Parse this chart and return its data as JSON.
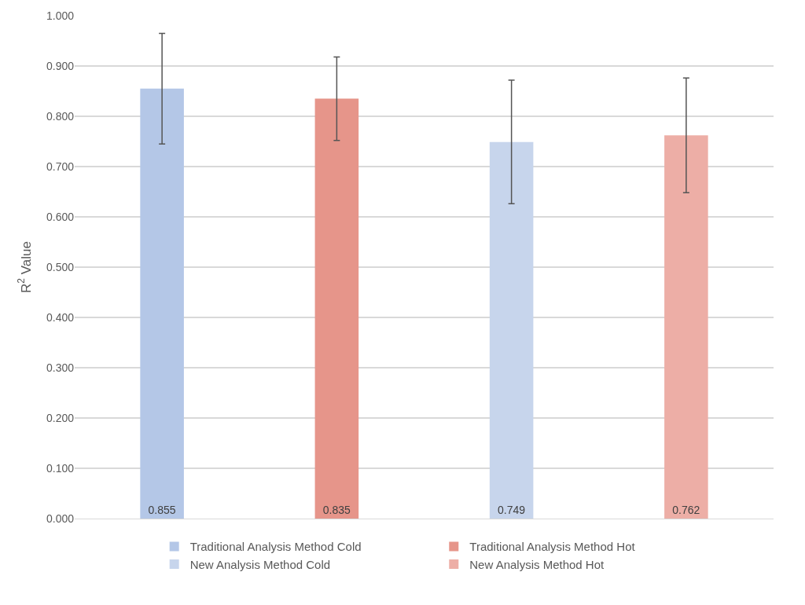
{
  "chart_data": {
    "type": "bar",
    "ylabel": "R$^{2}$ Value",
    "categories": [
      null,
      null,
      null,
      null
    ],
    "series": [
      {
        "name": "Traditional Analysis Method Cold",
        "color": "#b4c7e7",
        "values": [
          0.855,
          null,
          null,
          null
        ],
        "errors": [
          0.11,
          null,
          null,
          null
        ]
      },
      {
        "name": "Traditional Analysis Method Hot",
        "color": "#e6958a",
        "values": [
          null,
          0.835,
          null,
          null
        ],
        "errors": [
          null,
          0.083,
          null,
          null
        ]
      },
      {
        "name": "New Analysis Method Cold",
        "color": "#c7d5ec",
        "values": [
          null,
          null,
          0.749,
          null
        ],
        "errors": [
          null,
          null,
          0.123,
          null
        ]
      },
      {
        "name": "New Analysis Method Hot",
        "color": "#edaea6",
        "values": [
          null,
          null,
          null,
          0.762
        ],
        "errors": [
          null,
          null,
          null,
          0.114
        ]
      }
    ],
    "ylim": [
      0,
      1
    ],
    "yticks": [
      {
        "value": 0,
        "label": "0.000"
      },
      {
        "value": 0.1,
        "label": "0.100"
      },
      {
        "value": 0.2,
        "label": "0.200"
      },
      {
        "value": 0.3,
        "label": "0.300"
      },
      {
        "value": 0.4,
        "label": "0.400"
      },
      {
        "value": 0.5,
        "label": "0.500"
      },
      {
        "value": 0.6,
        "label": "0.600"
      },
      {
        "value": 0.7,
        "label": "0.700"
      },
      {
        "value": 0.8,
        "label": "0.800"
      },
      {
        "value": 0.9,
        "label": "0.900"
      },
      {
        "value": 1,
        "label": "1.000"
      }
    ],
    "grid": "y",
    "legend": "bottom",
    "data_labels": true
  }
}
